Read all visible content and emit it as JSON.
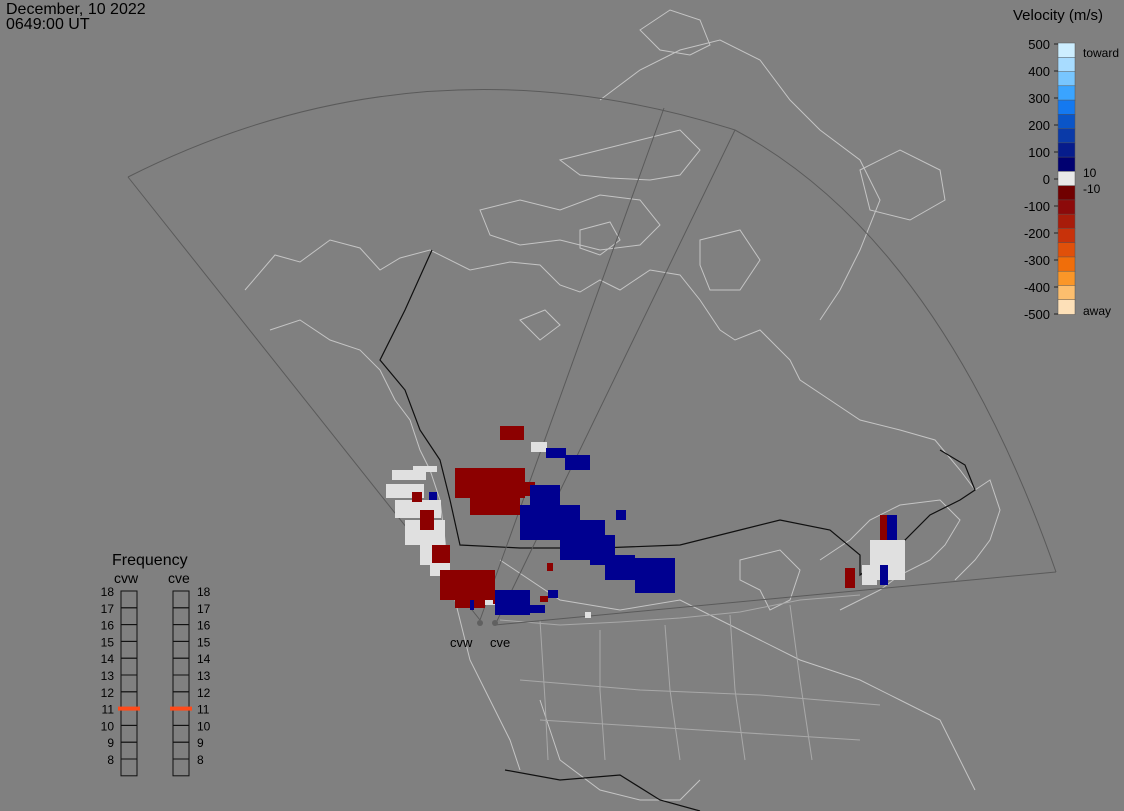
{
  "header": {
    "date": "December, 10 2022",
    "time": "0649:00 UT"
  },
  "colorbar": {
    "title": "Velocity (m/s)",
    "ticks": [
      "500",
      "400",
      "300",
      "200",
      "100",
      "0",
      "-100",
      "-200",
      "-300",
      "-400",
      "-500"
    ],
    "right_labels": {
      "top": "toward",
      "pos_small": "10",
      "neg_small": "-10",
      "bottom": "away"
    },
    "colors": [
      "#cdeeff",
      "#a8dcff",
      "#78c6ff",
      "#3aa4ff",
      "#1479f0",
      "#0a55c8",
      "#0a3aa8",
      "#061c8c",
      "#000070",
      "#e8e8e8",
      "#700000",
      "#8c0a0a",
      "#a81c0a",
      "#c8320a",
      "#e0500a",
      "#f06e0a",
      "#fa9628",
      "#fcbe6e",
      "#fde0b8"
    ]
  },
  "frequency": {
    "title": "Frequency",
    "radars": [
      "cvw",
      "cve"
    ],
    "scale": [
      "18",
      "17",
      "16",
      "15",
      "14",
      "13",
      "12",
      "11",
      "10",
      "9",
      "8"
    ],
    "current": {
      "cvw": 11,
      "cve": 11
    },
    "marker_color": "#ff4a1a"
  },
  "map": {
    "radar_labels": [
      "cvw",
      "cve"
    ],
    "colors": {
      "toward": "#000090",
      "away": "#8c0000",
      "ground_scatter": "#e0e0e0",
      "land": "#c8c8c8"
    }
  }
}
